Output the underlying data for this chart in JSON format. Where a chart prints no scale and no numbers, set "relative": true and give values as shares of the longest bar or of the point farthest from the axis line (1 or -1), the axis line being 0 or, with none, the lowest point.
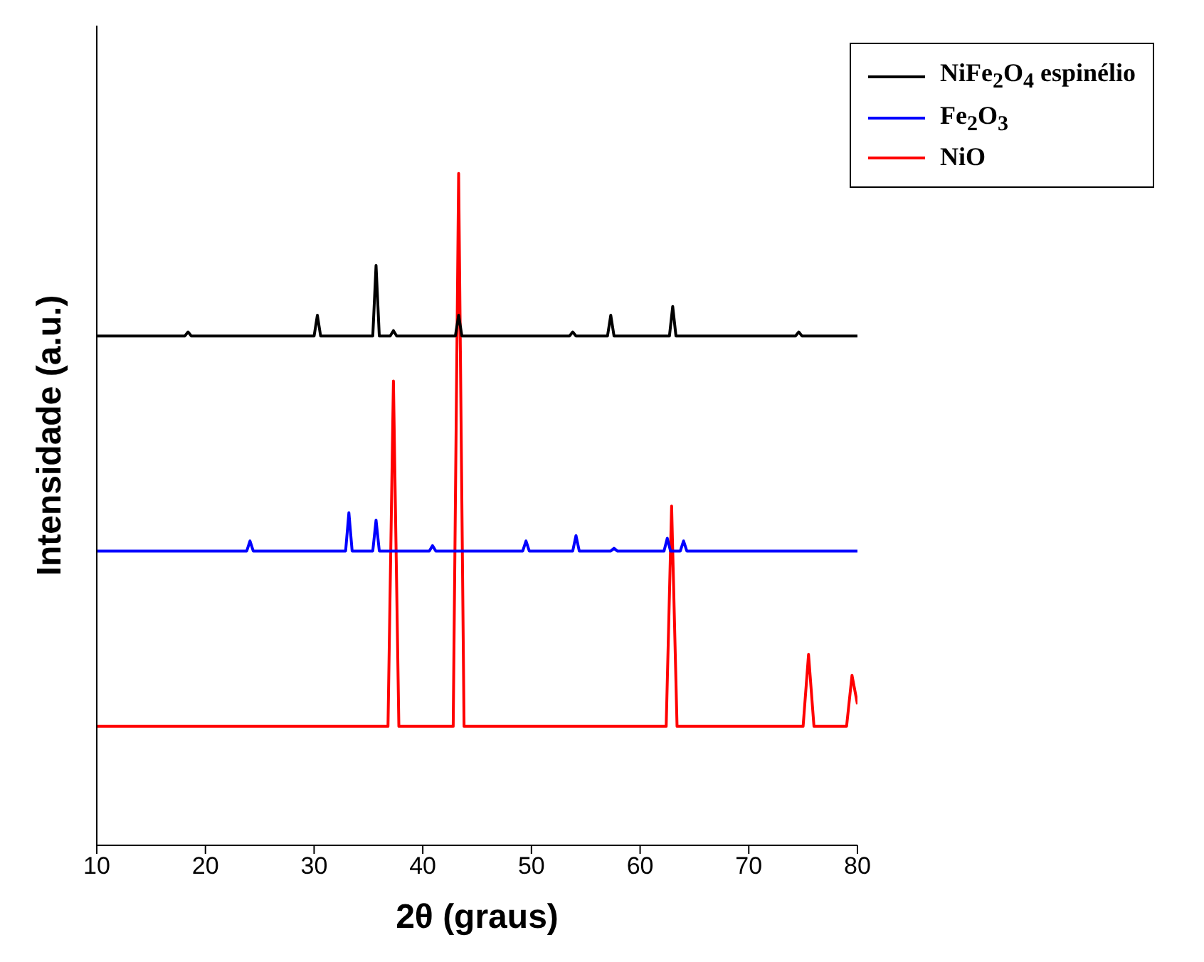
{
  "chart_data": {
    "type": "line",
    "relative": true,
    "xlabel": "2θ (graus)",
    "ylabel": "Intensidade (a.u.)",
    "xlim": [
      10,
      80
    ],
    "xticks": [
      10,
      20,
      30,
      40,
      50,
      60,
      70,
      80
    ],
    "legend": "top right",
    "grid": false,
    "marker": "none",
    "line_style": "solid",
    "series": [
      {
        "name": "NiFe$_{2}$O$_{4}$ espinélio",
        "color": "#000000",
        "x": [
          10,
          18.1,
          18.4,
          18.7,
          30.0,
          30.3,
          30.6,
          35.4,
          35.7,
          36.0,
          37.0,
          37.3,
          37.6,
          43.0,
          43.3,
          43.6,
          53.5,
          53.8,
          54.1,
          57.0,
          57.3,
          57.6,
          62.7,
          63.0,
          63.3,
          74.3,
          74.6,
          74.9,
          80
        ],
        "values": [
          0.758,
          0.758,
          0.764,
          0.758,
          0.758,
          0.789,
          0.758,
          0.758,
          0.863,
          0.758,
          0.758,
          0.766,
          0.758,
          0.758,
          0.789,
          0.758,
          0.758,
          0.764,
          0.758,
          0.758,
          0.789,
          0.758,
          0.758,
          0.802,
          0.758,
          0.758,
          0.764,
          0.758,
          0.758
        ]
      },
      {
        "name": "Fe$_{2}$O$_{3}$",
        "color": "#0000ff",
        "x": [
          10,
          23.8,
          24.1,
          24.4,
          32.9,
          33.2,
          33.5,
          35.4,
          35.7,
          36.0,
          40.6,
          40.9,
          41.2,
          49.2,
          49.5,
          49.8,
          53.8,
          54.1,
          54.4,
          57.3,
          57.6,
          57.9,
          62.2,
          62.5,
          62.8,
          63.7,
          64.0,
          64.3,
          80
        ],
        "values": [
          0.438,
          0.438,
          0.453,
          0.438,
          0.438,
          0.495,
          0.438,
          0.438,
          0.484,
          0.438,
          0.438,
          0.446,
          0.438,
          0.438,
          0.453,
          0.438,
          0.438,
          0.461,
          0.438,
          0.438,
          0.442,
          0.438,
          0.438,
          0.457,
          0.438,
          0.438,
          0.453,
          0.438,
          0.438
        ]
      },
      {
        "name": "NiO",
        "color": "#ff0000",
        "x": [
          10,
          36.8,
          37.3,
          37.8,
          42.8,
          43.3,
          43.8,
          62.4,
          62.9,
          63.4,
          75.0,
          75.5,
          76.0,
          79.0,
          79.5,
          80
        ],
        "values": [
          0.177,
          0.177,
          0.691,
          0.177,
          0.177,
          1.0,
          0.177,
          0.177,
          0.505,
          0.177,
          0.177,
          0.284,
          0.177,
          0.177,
          0.253,
          0.21
        ]
      }
    ]
  }
}
